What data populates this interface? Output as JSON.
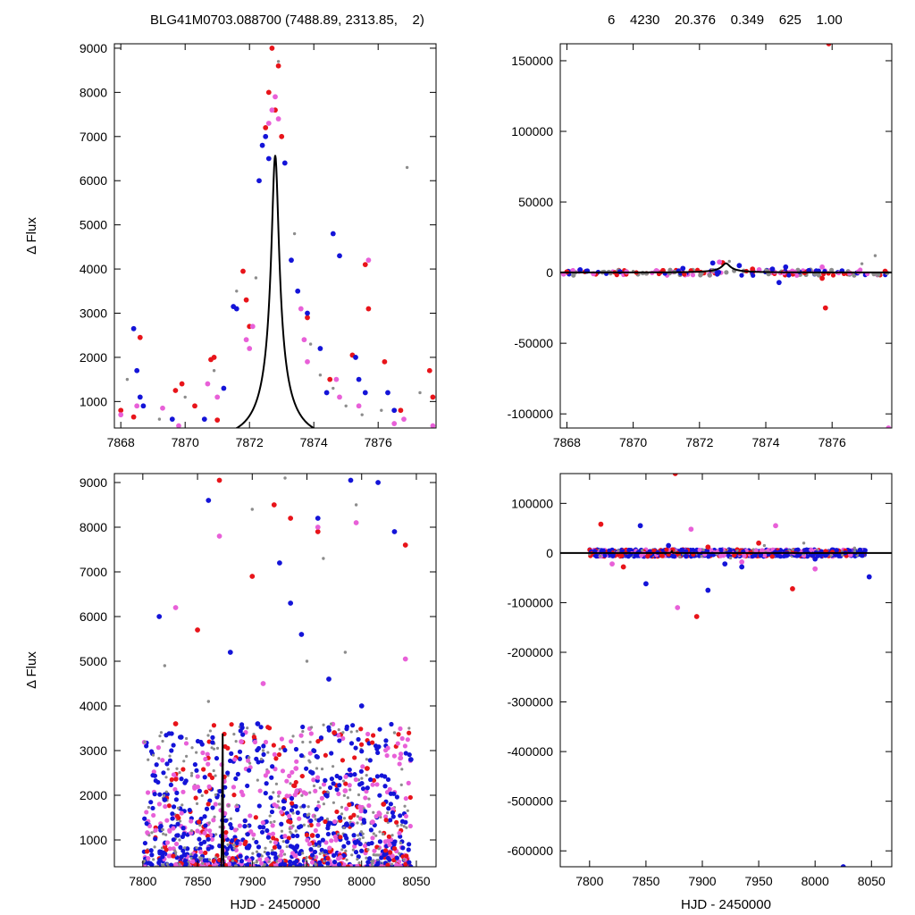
{
  "header": {
    "left": "BLG41M0703.088700 (7488.89, 2313.85,    2)",
    "right": "6    4230    20.376    0.349    625    1.00"
  },
  "colors": {
    "red": "#e8141a",
    "magenta": "#e860d8",
    "blue": "#1414d8",
    "gray": "#8c8c8c",
    "model": "#000000"
  },
  "chart_data": [
    {
      "id": "top-left",
      "type": "scatter",
      "ylabel": "Δ Flux",
      "xlabel": "",
      "xlim": [
        7867.8,
        7877.8
      ],
      "ylim": [
        400,
        9100
      ],
      "xticks": [
        7868,
        7870,
        7872,
        7874,
        7876
      ],
      "yticks": [
        1000,
        2000,
        3000,
        4000,
        5000,
        6000,
        7000,
        8000,
        9000
      ],
      "model": {
        "t0": 7872.8,
        "u0": 0.08,
        "tE": 1.45,
        "base": 120,
        "amp": 560
      },
      "series": [
        {
          "color": "red",
          "points": [
            [
              7868.0,
              800
            ],
            [
              7868.6,
              2450
            ],
            [
              7869.7,
              1250
            ],
            [
              7869.9,
              1400
            ],
            [
              7870.8,
              1950
            ],
            [
              7870.9,
              2000
            ],
            [
              7871.0,
              580
            ],
            [
              7871.8,
              3950
            ],
            [
              7871.9,
              3300
            ],
            [
              7872.0,
              2700
            ],
            [
              7872.5,
              7200
            ],
            [
              7872.6,
              8000
            ],
            [
              7872.7,
              9000
            ],
            [
              7872.8,
              7600
            ],
            [
              7872.9,
              8600
            ],
            [
              7873.0,
              7000
            ],
            [
              7873.8,
              2900
            ],
            [
              7874.5,
              1500
            ],
            [
              7875.2,
              2050
            ],
            [
              7875.6,
              4100
            ],
            [
              7875.7,
              3100
            ],
            [
              7876.2,
              1900
            ],
            [
              7876.7,
              800
            ],
            [
              7877.6,
              1700
            ],
            [
              7877.7,
              1100
            ],
            [
              7868.4,
              650
            ],
            [
              7870.3,
              900
            ]
          ]
        },
        {
          "color": "magenta",
          "points": [
            [
              7868.0,
              700
            ],
            [
              7868.5,
              900
            ],
            [
              7869.3,
              850
            ],
            [
              7869.8,
              450
            ],
            [
              7870.7,
              1400
            ],
            [
              7871.0,
              1100
            ],
            [
              7871.9,
              2400
            ],
            [
              7872.0,
              2200
            ],
            [
              7872.6,
              7300
            ],
            [
              7872.7,
              7600
            ],
            [
              7872.8,
              7900
            ],
            [
              7872.9,
              7400
            ],
            [
              7873.7,
              2400
            ],
            [
              7873.8,
              1900
            ],
            [
              7874.7,
              1500
            ],
            [
              7874.8,
              1100
            ],
            [
              7875.4,
              900
            ],
            [
              7875.7,
              4200
            ],
            [
              7876.5,
              500
            ],
            [
              7876.8,
              600
            ],
            [
              7877.7,
              450
            ],
            [
              7872.1,
              2700
            ],
            [
              7873.6,
              3100
            ]
          ]
        },
        {
          "color": "blue",
          "points": [
            [
              7868.4,
              2650
            ],
            [
              7868.5,
              1700
            ],
            [
              7868.6,
              1100
            ],
            [
              7868.7,
              900
            ],
            [
              7869.6,
              600
            ],
            [
              7870.6,
              600
            ],
            [
              7871.5,
              3150
            ],
            [
              7871.6,
              3100
            ],
            [
              7872.3,
              6000
            ],
            [
              7872.4,
              6800
            ],
            [
              7872.5,
              7000
            ],
            [
              7872.6,
              6500
            ],
            [
              7873.1,
              6400
            ],
            [
              7873.3,
              4200
            ],
            [
              7873.5,
              3500
            ],
            [
              7873.8,
              3000
            ],
            [
              7874.2,
              2200
            ],
            [
              7874.4,
              1200
            ],
            [
              7874.6,
              4800
            ],
            [
              7874.8,
              4300
            ],
            [
              7875.3,
              2000
            ],
            [
              7875.4,
              1500
            ],
            [
              7875.6,
              1200
            ],
            [
              7876.3,
              1200
            ],
            [
              7876.5,
              800
            ],
            [
              7871.2,
              1300
            ]
          ]
        },
        {
          "color": "gray",
          "points": [
            [
              7868.2,
              1500
            ],
            [
              7870.0,
              1100
            ],
            [
              7871.6,
              3500
            ],
            [
              7872.9,
              8700
            ],
            [
              7873.4,
              4800
            ],
            [
              7873.9,
              2300
            ],
            [
              7874.2,
              1600
            ],
            [
              7874.6,
              1300
            ],
            [
              7875.0,
              900
            ],
            [
              7875.5,
              700
            ],
            [
              7876.1,
              800
            ],
            [
              7876.9,
              6300
            ],
            [
              7877.3,
              1200
            ],
            [
              7870.9,
              1700
            ],
            [
              7869.2,
              600
            ],
            [
              7872.2,
              3800
            ]
          ]
        }
      ]
    },
    {
      "id": "top-right",
      "type": "scatter",
      "ylabel": "",
      "xlabel": "",
      "xlim": [
        7867.8,
        7877.8
      ],
      "ylim": [
        -110000,
        162000
      ],
      "xticks": [
        7868,
        7870,
        7872,
        7874,
        7876
      ],
      "yticks": [
        -100000,
        -50000,
        0,
        50000,
        100000,
        150000
      ],
      "model": {
        "t0": 7872.8,
        "u0": 0.08,
        "tE": 1.45,
        "base": 120,
        "amp": 560
      },
      "series": [
        {
          "color": "red",
          "points": [
            [
              7875.9,
              162000
            ],
            [
              7875.8,
              -25000
            ],
            [
              7868.0,
              500
            ],
            [
              7872.7,
              7000
            ],
            [
              7875.7,
              -4000
            ],
            [
              7877.6,
              1000
            ],
            [
              7870.9,
              1500
            ],
            [
              7873.6,
              2500
            ]
          ]
        },
        {
          "color": "magenta",
          "points": [
            [
              7867.9,
              -1000
            ],
            [
              7868.8,
              -800
            ],
            [
              7869.8,
              500
            ],
            [
              7870.7,
              1400
            ],
            [
              7872.6,
              7500
            ],
            [
              7873.8,
              2000
            ],
            [
              7874.8,
              1100
            ],
            [
              7875.7,
              4000
            ],
            [
              7876.8,
              600
            ],
            [
              7877.7,
              -110000
            ]
          ]
        },
        {
          "color": "blue",
          "points": [
            [
              7868.4,
              2000
            ],
            [
              7868.6,
              1000
            ],
            [
              7869.6,
              600
            ],
            [
              7871.5,
              3000
            ],
            [
              7872.4,
              6800
            ],
            [
              7873.2,
              5000
            ],
            [
              7874.2,
              2500
            ],
            [
              7874.4,
              -7000
            ],
            [
              7874.6,
              4000
            ],
            [
              7875.3,
              1500
            ],
            [
              7876.3,
              1200
            ]
          ]
        },
        {
          "color": "gray",
          "points": [
            [
              7876.9,
              6300
            ],
            [
              7877.3,
              12000
            ],
            [
              7872.9,
              8000
            ],
            [
              7870.0,
              1000
            ],
            [
              7874.0,
              2000
            ]
          ]
        }
      ]
    },
    {
      "id": "bottom-left",
      "type": "scatter",
      "ylabel": "Δ Flux",
      "xlabel": "HJD - 2450000",
      "xlim": [
        7774,
        8068
      ],
      "ylim": [
        400,
        9200
      ],
      "xticks": [
        7800,
        7850,
        7900,
        7950,
        8000,
        8050
      ],
      "yticks": [
        1000,
        2000,
        3000,
        4000,
        5000,
        6000,
        7000,
        8000,
        9000
      ],
      "model": {
        "t0": 7872.8,
        "u0": 0.08,
        "tE": 1.45,
        "base": 120,
        "amp": 560
      },
      "series": [
        {
          "color": "red",
          "points": [
            [
              7870,
              9050
            ],
            [
              7920,
              8500
            ],
            [
              7935,
              8200
            ],
            [
              7960,
              7900
            ],
            [
              8040,
              7600
            ],
            [
              7900,
              6900
            ],
            [
              7850,
              5700
            ],
            [
              7830,
              3600
            ],
            [
              7975,
              3400
            ],
            [
              8005,
              2600
            ],
            [
              8020,
              1800
            ],
            [
              7955,
              1100
            ]
          ]
        },
        {
          "color": "magenta",
          "points": [
            [
              7830,
              6200
            ],
            [
              7870,
              7800
            ],
            [
              7960,
              8000
            ],
            [
              7995,
              8100
            ],
            [
              8040,
              5050
            ],
            [
              7910,
              4500
            ],
            [
              7890,
              3200
            ],
            [
              7940,
              2600
            ],
            [
              7985,
              2100
            ],
            [
              8010,
              1400
            ]
          ]
        },
        {
          "color": "blue",
          "points": [
            [
              7860,
              8600
            ],
            [
              7990,
              9050
            ],
            [
              8015,
              9000
            ],
            [
              8030,
              7900
            ],
            [
              7925,
              7200
            ],
            [
              7815,
              6000
            ],
            [
              7945,
              5600
            ],
            [
              7880,
              5200
            ],
            [
              7970,
              4600
            ],
            [
              8000,
              4000
            ],
            [
              7835,
              3300
            ],
            [
              7905,
              3600
            ],
            [
              7955,
              2500
            ],
            [
              8045,
              2800
            ],
            [
              7820,
              1900
            ],
            [
              7980,
              1500
            ],
            [
              7960,
              8200
            ],
            [
              7935,
              6300
            ]
          ]
        },
        {
          "color": "gray",
          "points": [
            [
              7820,
              4900
            ],
            [
              7860,
              4100
            ],
            [
              7900,
              8400
            ],
            [
              7930,
              9100
            ],
            [
              7965,
              7300
            ],
            [
              7995,
              8500
            ],
            [
              7950,
              5000
            ],
            [
              7985,
              5200
            ],
            [
              7910,
              3000
            ],
            [
              8030,
              3400
            ],
            [
              7870,
              1800
            ],
            [
              7940,
              1200
            ]
          ]
        }
      ]
    },
    {
      "id": "bottom-right",
      "type": "scatter",
      "ylabel": "",
      "xlabel": "HJD - 2450000",
      "xlim": [
        7774,
        8068
      ],
      "ylim": [
        -632000,
        160000
      ],
      "xticks": [
        7800,
        7850,
        7900,
        7950,
        8000,
        8050
      ],
      "yticks": [
        -600000,
        -500000,
        -400000,
        -300000,
        -200000,
        -100000,
        0,
        100000
      ],
      "model": {
        "t0": 7872.8,
        "u0": 0.08,
        "tE": 1.45,
        "base": 120,
        "amp": 560
      },
      "series": [
        {
          "color": "red",
          "points": [
            [
              7876,
              160000
            ],
            [
              7810,
              58000
            ],
            [
              7895,
              -128000
            ],
            [
              7980,
              -72000
            ],
            [
              7830,
              -28000
            ],
            [
              7950,
              20000
            ],
            [
              7905,
              12000
            ]
          ]
        },
        {
          "color": "magenta",
          "points": [
            [
              7878,
              -110000
            ],
            [
              7890,
              48000
            ],
            [
              7965,
              55000
            ],
            [
              7820,
              -22000
            ],
            [
              7935,
              -18000
            ],
            [
              8000,
              -32000
            ]
          ]
        },
        {
          "color": "blue",
          "points": [
            [
              8025,
              -632000
            ],
            [
              7845,
              55000
            ],
            [
              7850,
              -62000
            ],
            [
              7905,
              -75000
            ],
            [
              8048,
              -48000
            ],
            [
              7935,
              -28000
            ],
            [
              7870,
              15000
            ],
            [
              7920,
              -22000
            ],
            [
              8000,
              -12000
            ]
          ]
        },
        {
          "color": "gray",
          "points": [
            [
              7800,
              -2000
            ],
            [
              7990,
              20000
            ],
            [
              7955,
              15000
            ],
            [
              7880,
              -8000
            ],
            [
              8035,
              10000
            ],
            [
              7925,
              -10000
            ]
          ]
        }
      ]
    }
  ]
}
